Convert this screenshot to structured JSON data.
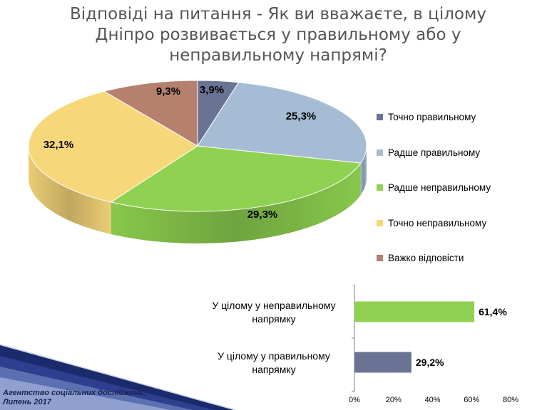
{
  "title_lines": [
    "Відповіді на питання - Як ви вважаєте, в цілому",
    "Дніпро розвивається у правильному або у",
    "неправильному напрямі?"
  ],
  "footer": {
    "line1": "Агентство соціальних досліджень,",
    "line2": "Липень 2017"
  },
  "chart_data": [
    {
      "type": "pie",
      "categories": [
        "Точно правильному",
        "Радше правильному",
        "Радше неправильному",
        "Точно неправильному",
        "Важко відповісти"
      ],
      "values": [
        3.9,
        25.3,
        29.3,
        32.1,
        9.3
      ],
      "labels": [
        "3,9%",
        "25,3%",
        "29,3%",
        "32,1%",
        "9,3%"
      ],
      "colors": [
        "#6a7394",
        "#a5bcd4",
        "#8fd150",
        "#f6d77a",
        "#b5806e"
      ],
      "legend_position": "right"
    },
    {
      "type": "bar",
      "orientation": "horizontal",
      "categories": [
        "У цілому у неправильному напрямку",
        "У цілому у правильному напрямку"
      ],
      "values": [
        61.4,
        29.2
      ],
      "labels": [
        "61,4%",
        "29,2%"
      ],
      "colors": [
        "#8fd150",
        "#6a7394"
      ],
      "xlim": [
        0,
        80
      ],
      "xticks": [
        "0%",
        "20%",
        "40%",
        "60%",
        "80%"
      ],
      "grid": false
    }
  ]
}
